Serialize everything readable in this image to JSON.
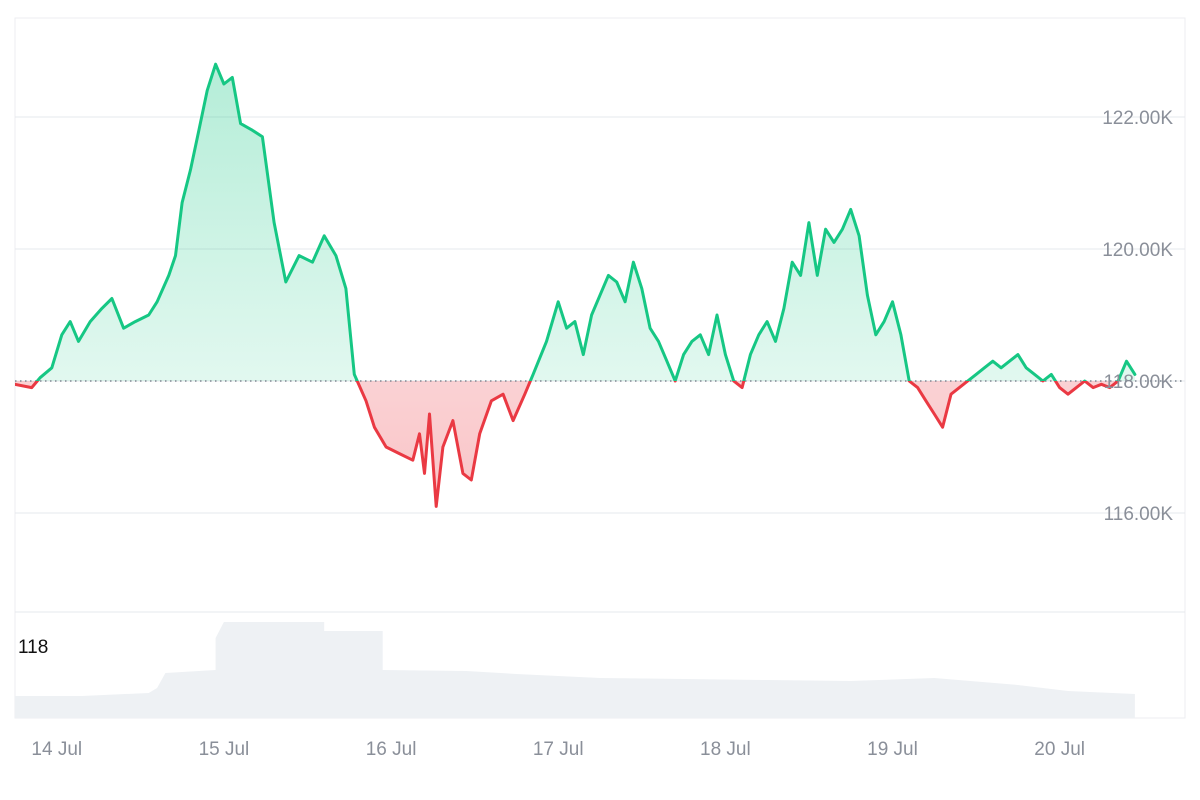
{
  "chart_data": {
    "type": "area",
    "baseline": 118000,
    "ylim": [
      114500,
      123500
    ],
    "xlim": [
      0,
      7
    ],
    "y_ticks": [
      {
        "value": 116000,
        "label": "116.00K"
      },
      {
        "value": 118000,
        "label": "118.00K"
      },
      {
        "value": 120000,
        "label": "120.00K"
      },
      {
        "value": 122000,
        "label": "122.00K"
      }
    ],
    "x_ticks": [
      {
        "x": 0.25,
        "label": "14 Jul"
      },
      {
        "x": 1.25,
        "label": "15 Jul"
      },
      {
        "x": 2.25,
        "label": "16 Jul"
      },
      {
        "x": 3.25,
        "label": "17 Jul"
      },
      {
        "x": 4.25,
        "label": "18 Jul"
      },
      {
        "x": 5.25,
        "label": "19 Jul"
      },
      {
        "x": 6.25,
        "label": "20 Jul"
      }
    ],
    "grid": true,
    "colors": {
      "above": "#16c784",
      "below": "#ea3943",
      "grid": "#e6e8ec",
      "baseline": "#7d8590",
      "volume": "#eef1f4"
    },
    "price": [
      [
        0.0,
        117.95
      ],
      [
        0.1,
        117.9
      ],
      [
        0.15,
        118.05
      ],
      [
        0.22,
        118.2
      ],
      [
        0.28,
        118.7
      ],
      [
        0.33,
        118.9
      ],
      [
        0.38,
        118.6
      ],
      [
        0.45,
        118.9
      ],
      [
        0.52,
        119.1
      ],
      [
        0.58,
        119.25
      ],
      [
        0.65,
        118.8
      ],
      [
        0.72,
        118.9
      ],
      [
        0.8,
        119.0
      ],
      [
        0.85,
        119.2
      ],
      [
        0.92,
        119.6
      ],
      [
        0.96,
        119.9
      ],
      [
        1.0,
        120.7
      ],
      [
        1.05,
        121.2
      ],
      [
        1.1,
        121.8
      ],
      [
        1.15,
        122.4
      ],
      [
        1.2,
        122.8
      ],
      [
        1.25,
        122.5
      ],
      [
        1.3,
        122.6
      ],
      [
        1.35,
        121.9
      ],
      [
        1.42,
        121.8
      ],
      [
        1.48,
        121.7
      ],
      [
        1.55,
        120.4
      ],
      [
        1.62,
        119.5
      ],
      [
        1.7,
        119.9
      ],
      [
        1.78,
        119.8
      ],
      [
        1.85,
        120.2
      ],
      [
        1.92,
        119.9
      ],
      [
        1.98,
        119.4
      ],
      [
        2.03,
        118.1
      ],
      [
        2.1,
        117.7
      ],
      [
        2.15,
        117.3
      ],
      [
        2.22,
        117.0
      ],
      [
        2.3,
        116.9
      ],
      [
        2.38,
        116.8
      ],
      [
        2.42,
        117.2
      ],
      [
        2.45,
        116.6
      ],
      [
        2.48,
        117.5
      ],
      [
        2.52,
        116.1
      ],
      [
        2.56,
        117.0
      ],
      [
        2.62,
        117.4
      ],
      [
        2.68,
        116.6
      ],
      [
        2.73,
        116.5
      ],
      [
        2.78,
        117.2
      ],
      [
        2.85,
        117.7
      ],
      [
        2.92,
        117.8
      ],
      [
        2.98,
        117.4
      ],
      [
        3.05,
        117.8
      ],
      [
        3.1,
        118.1
      ],
      [
        3.18,
        118.6
      ],
      [
        3.25,
        119.2
      ],
      [
        3.3,
        118.8
      ],
      [
        3.35,
        118.9
      ],
      [
        3.4,
        118.4
      ],
      [
        3.45,
        119.0
      ],
      [
        3.5,
        119.3
      ],
      [
        3.55,
        119.6
      ],
      [
        3.6,
        119.5
      ],
      [
        3.65,
        119.2
      ],
      [
        3.7,
        119.8
      ],
      [
        3.75,
        119.4
      ],
      [
        3.8,
        118.8
      ],
      [
        3.85,
        118.6
      ],
      [
        3.9,
        118.3
      ],
      [
        3.95,
        118.0
      ],
      [
        4.0,
        118.4
      ],
      [
        4.05,
        118.6
      ],
      [
        4.1,
        118.7
      ],
      [
        4.15,
        118.4
      ],
      [
        4.2,
        119.0
      ],
      [
        4.25,
        118.4
      ],
      [
        4.3,
        118.0
      ],
      [
        4.35,
        117.9
      ],
      [
        4.4,
        118.4
      ],
      [
        4.45,
        118.7
      ],
      [
        4.5,
        118.9
      ],
      [
        4.55,
        118.6
      ],
      [
        4.6,
        119.1
      ],
      [
        4.65,
        119.8
      ],
      [
        4.7,
        119.6
      ],
      [
        4.75,
        120.4
      ],
      [
        4.8,
        119.6
      ],
      [
        4.85,
        120.3
      ],
      [
        4.9,
        120.1
      ],
      [
        4.95,
        120.3
      ],
      [
        5.0,
        120.6
      ],
      [
        5.05,
        120.2
      ],
      [
        5.1,
        119.3
      ],
      [
        5.15,
        118.7
      ],
      [
        5.2,
        118.9
      ],
      [
        5.25,
        119.2
      ],
      [
        5.3,
        118.7
      ],
      [
        5.35,
        118.0
      ],
      [
        5.4,
        117.9
      ],
      [
        5.45,
        117.7
      ],
      [
        5.5,
        117.5
      ],
      [
        5.55,
        117.3
      ],
      [
        5.6,
        117.8
      ],
      [
        5.65,
        117.9
      ],
      [
        5.7,
        118.0
      ],
      [
        5.75,
        118.1
      ],
      [
        5.8,
        118.2
      ],
      [
        5.85,
        118.3
      ],
      [
        5.9,
        118.2
      ],
      [
        5.95,
        118.3
      ],
      [
        6.0,
        118.4
      ],
      [
        6.05,
        118.2
      ],
      [
        6.1,
        118.1
      ],
      [
        6.15,
        118.0
      ],
      [
        6.2,
        118.1
      ],
      [
        6.25,
        117.9
      ],
      [
        6.3,
        117.8
      ],
      [
        6.35,
        117.9
      ],
      [
        6.4,
        118.0
      ],
      [
        6.45,
        117.9
      ],
      [
        6.5,
        117.95
      ],
      [
        6.55,
        117.9
      ],
      [
        6.6,
        118.0
      ],
      [
        6.65,
        118.3
      ],
      [
        6.7,
        118.1
      ]
    ],
    "volume": {
      "label": "118",
      "ylim": [
        0,
        100
      ],
      "values": [
        [
          0.0,
          22
        ],
        [
          0.4,
          22
        ],
        [
          0.8,
          25
        ],
        [
          0.85,
          30
        ],
        [
          0.9,
          45
        ],
        [
          1.2,
          48
        ],
        [
          1.2,
          80
        ],
        [
          1.25,
          96
        ],
        [
          1.85,
          96
        ],
        [
          1.85,
          87
        ],
        [
          2.2,
          87
        ],
        [
          2.2,
          48
        ],
        [
          2.7,
          47
        ],
        [
          3.0,
          44
        ],
        [
          3.5,
          40
        ],
        [
          4.5,
          38
        ],
        [
          5.0,
          37
        ],
        [
          5.5,
          40
        ],
        [
          6.0,
          33
        ],
        [
          6.3,
          27
        ],
        [
          6.7,
          24
        ]
      ]
    }
  }
}
